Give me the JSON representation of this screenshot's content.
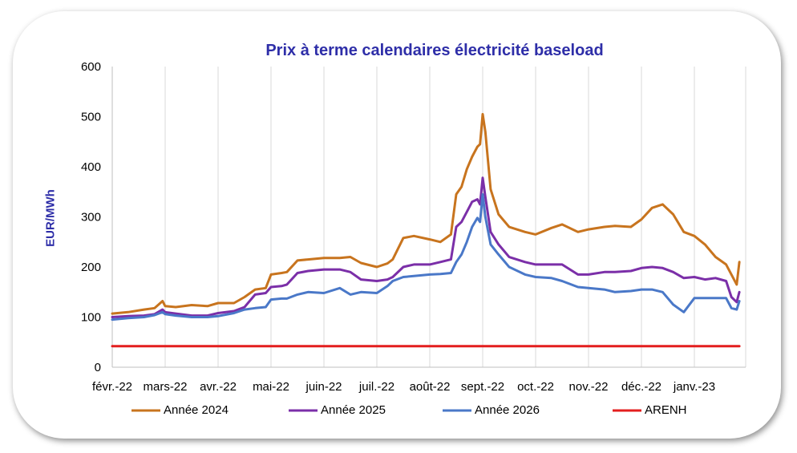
{
  "chart_data": {
    "type": "line",
    "title": "Prix à terme calendaires électricité baseload",
    "ylabel": "EUR/MWh",
    "xlabel": "",
    "ylim": [
      0,
      600
    ],
    "yticks": [
      0,
      100,
      200,
      300,
      400,
      500,
      600
    ],
    "x_tick_labels": [
      "févr.-22",
      "mars-22",
      "avr.-22",
      "mai-22",
      "juin-22",
      "juil.-22",
      "août-22",
      "sept.-22",
      "oct.-22",
      "nov.-22",
      "déc.-22",
      "janv.-23"
    ],
    "x_range": [
      0,
      11.85
    ],
    "grid": "vertical",
    "legend_position": "bottom",
    "series": [
      {
        "name": "Année 2024",
        "color": "#C8741E",
        "x": [
          0,
          0.3,
          0.6,
          0.8,
          0.95,
          1.0,
          1.2,
          1.5,
          1.8,
          2.0,
          2.3,
          2.5,
          2.7,
          2.9,
          3.0,
          3.2,
          3.3,
          3.5,
          3.7,
          4.0,
          4.3,
          4.5,
          4.7,
          5.0,
          5.2,
          5.3,
          5.5,
          5.7,
          6.0,
          6.2,
          6.4,
          6.5,
          6.6,
          6.7,
          6.8,
          6.9,
          6.95,
          7.0,
          7.05,
          7.15,
          7.3,
          7.5,
          7.8,
          8.0,
          8.3,
          8.5,
          8.8,
          9.0,
          9.3,
          9.5,
          9.8,
          10.0,
          10.2,
          10.4,
          10.6,
          10.8,
          11.0,
          11.2,
          11.4,
          11.6,
          11.7,
          11.8,
          11.85
        ],
        "values": [
          107,
          110,
          115,
          118,
          132,
          122,
          120,
          124,
          122,
          128,
          128,
          140,
          155,
          158,
          185,
          188,
          190,
          213,
          215,
          218,
          218,
          220,
          208,
          200,
          207,
          215,
          258,
          262,
          255,
          250,
          265,
          345,
          360,
          395,
          420,
          440,
          445,
          505,
          470,
          355,
          305,
          280,
          270,
          265,
          278,
          285,
          270,
          275,
          280,
          282,
          280,
          295,
          318,
          325,
          305,
          270,
          262,
          245,
          220,
          205,
          185,
          165,
          210
        ]
      },
      {
        "name": "Année 2025",
        "color": "#7B2FA8",
        "x": [
          0,
          0.3,
          0.6,
          0.8,
          0.95,
          1.0,
          1.2,
          1.5,
          1.8,
          2.0,
          2.3,
          2.5,
          2.7,
          2.9,
          3.0,
          3.2,
          3.3,
          3.5,
          3.7,
          4.0,
          4.3,
          4.5,
          4.7,
          5.0,
          5.2,
          5.3,
          5.5,
          5.7,
          6.0,
          6.2,
          6.4,
          6.5,
          6.6,
          6.7,
          6.8,
          6.9,
          6.95,
          7.0,
          7.05,
          7.15,
          7.3,
          7.5,
          7.8,
          8.0,
          8.3,
          8.5,
          8.8,
          9.0,
          9.3,
          9.5,
          9.8,
          10.0,
          10.2,
          10.4,
          10.6,
          10.8,
          11.0,
          11.2,
          11.4,
          11.6,
          11.7,
          11.8,
          11.85
        ],
        "values": [
          100,
          102,
          103,
          106,
          115,
          110,
          107,
          103,
          103,
          108,
          112,
          120,
          145,
          148,
          160,
          162,
          165,
          188,
          192,
          195,
          195,
          190,
          175,
          172,
          175,
          180,
          200,
          205,
          205,
          210,
          215,
          280,
          290,
          310,
          330,
          335,
          325,
          378,
          340,
          270,
          245,
          220,
          210,
          205,
          205,
          205,
          185,
          185,
          190,
          190,
          192,
          198,
          200,
          198,
          190,
          178,
          180,
          175,
          178,
          172,
          140,
          130,
          150
        ]
      },
      {
        "name": "Année 2026",
        "color": "#4A78C8",
        "x": [
          0,
          0.3,
          0.6,
          0.8,
          0.95,
          1.0,
          1.2,
          1.5,
          1.8,
          2.0,
          2.3,
          2.5,
          2.7,
          2.9,
          3.0,
          3.2,
          3.3,
          3.5,
          3.7,
          4.0,
          4.3,
          4.5,
          4.7,
          5.0,
          5.2,
          5.3,
          5.5,
          5.7,
          6.0,
          6.2,
          6.4,
          6.5,
          6.6,
          6.7,
          6.8,
          6.9,
          6.95,
          7.0,
          7.05,
          7.15,
          7.3,
          7.5,
          7.8,
          8.0,
          8.3,
          8.5,
          8.8,
          9.0,
          9.3,
          9.5,
          9.8,
          10.0,
          10.2,
          10.4,
          10.6,
          10.8,
          11.0,
          11.2,
          11.4,
          11.6,
          11.7,
          11.8,
          11.85
        ],
        "values": [
          95,
          98,
          100,
          104,
          110,
          106,
          103,
          100,
          100,
          102,
          108,
          115,
          118,
          120,
          135,
          137,
          137,
          145,
          150,
          148,
          158,
          145,
          150,
          148,
          162,
          172,
          180,
          182,
          185,
          186,
          188,
          210,
          225,
          250,
          280,
          298,
          290,
          345,
          300,
          245,
          225,
          200,
          185,
          180,
          178,
          172,
          160,
          158,
          155,
          150,
          152,
          155,
          155,
          150,
          125,
          110,
          138,
          138,
          138,
          138,
          118,
          115,
          132
        ]
      },
      {
        "name": "ARENH",
        "color": "#E31E1E",
        "x": [
          0,
          11.85
        ],
        "values": [
          42,
          42
        ]
      }
    ]
  }
}
